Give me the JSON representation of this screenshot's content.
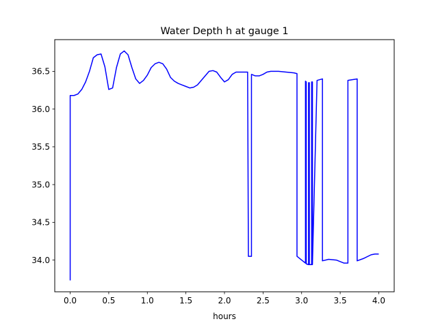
{
  "chart_data": {
    "type": "line",
    "title": "Water Depth h at gauge 1",
    "xlabel": "hours",
    "ylabel": "",
    "xlim": [
      -0.2,
      4.2
    ],
    "ylim": [
      33.58,
      36.92
    ],
    "xticks": [
      0.0,
      0.5,
      1.0,
      1.5,
      2.0,
      2.5,
      3.0,
      3.5,
      4.0
    ],
    "xtick_labels": [
      "0.0",
      "0.5",
      "1.0",
      "1.5",
      "2.0",
      "2.5",
      "3.0",
      "3.5",
      "4.0"
    ],
    "yticks": [
      34.0,
      34.5,
      35.0,
      35.5,
      36.0,
      36.5
    ],
    "ytick_labels": [
      "34.0",
      "34.5",
      "35.0",
      "35.5",
      "36.0",
      "36.5"
    ],
    "grid": false,
    "series": [
      {
        "color": "#0000ff",
        "x": [
          0.0,
          0.0,
          0.05,
          0.1,
          0.15,
          0.2,
          0.25,
          0.3,
          0.35,
          0.4,
          0.45,
          0.5,
          0.55,
          0.6,
          0.65,
          0.7,
          0.75,
          0.8,
          0.85,
          0.9,
          0.95,
          1.0,
          1.05,
          1.1,
          1.15,
          1.2,
          1.25,
          1.3,
          1.35,
          1.4,
          1.45,
          1.5,
          1.55,
          1.6,
          1.65,
          1.7,
          1.75,
          1.8,
          1.85,
          1.9,
          1.95,
          2.0,
          2.05,
          2.1,
          2.15,
          2.2,
          2.25,
          2.3,
          2.31,
          2.31,
          2.35,
          2.35,
          2.4,
          2.45,
          2.5,
          2.55,
          2.6,
          2.65,
          2.7,
          2.8,
          2.9,
          2.94,
          2.94,
          3.0,
          3.05,
          3.05,
          3.06,
          3.06,
          3.09,
          3.09,
          3.1,
          3.1,
          3.13,
          3.13,
          3.14,
          3.14,
          3.2,
          3.27,
          3.27,
          3.35,
          3.45,
          3.55,
          3.6,
          3.6,
          3.72,
          3.72,
          3.8,
          3.9,
          3.95,
          4.0
        ],
        "y": [
          33.73,
          36.18,
          36.18,
          36.2,
          36.26,
          36.36,
          36.5,
          36.68,
          36.72,
          36.73,
          36.56,
          36.26,
          36.28,
          36.55,
          36.73,
          36.77,
          36.72,
          36.55,
          36.4,
          36.34,
          36.38,
          36.45,
          36.55,
          36.6,
          36.62,
          36.6,
          36.53,
          36.42,
          36.37,
          36.34,
          36.32,
          36.3,
          36.28,
          36.29,
          36.32,
          36.38,
          36.44,
          36.5,
          36.51,
          36.49,
          36.42,
          36.36,
          36.39,
          36.46,
          36.49,
          36.49,
          36.49,
          36.49,
          34.06,
          34.05,
          34.05,
          36.46,
          36.44,
          36.44,
          36.46,
          36.49,
          36.5,
          36.5,
          36.5,
          36.49,
          36.48,
          36.47,
          34.05,
          34.0,
          33.96,
          36.37,
          36.36,
          33.95,
          33.94,
          36.35,
          36.35,
          33.94,
          33.94,
          36.36,
          36.36,
          33.94,
          36.38,
          36.4,
          33.99,
          34.01,
          34.0,
          33.96,
          33.96,
          36.38,
          36.4,
          33.99,
          34.02,
          34.07,
          34.08,
          34.08
        ]
      }
    ]
  }
}
